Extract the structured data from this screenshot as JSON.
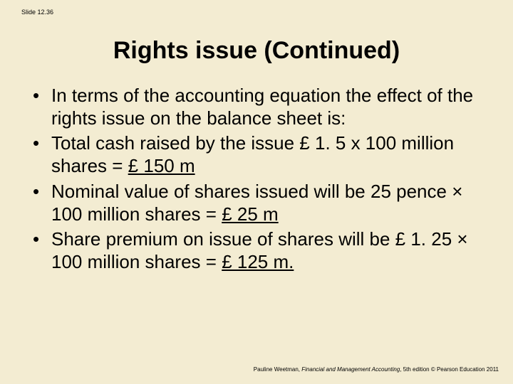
{
  "background_color": "#f3ecd2",
  "text_color": "#000000",
  "slide_number": "Slide 12.36",
  "title": "Rights issue (Continued)",
  "title_fontsize": 34,
  "body_fontsize": 26,
  "bullets": [
    {
      "pre": "In terms of the accounting equation the effect of the rights issue on the balance sheet is:",
      "u": "",
      "post": ""
    },
    {
      "pre": "Total cash raised by the issue £ 1. 5 x 100 million shares = ",
      "u": "£ 150 m",
      "post": ""
    },
    {
      "pre": "Nominal value of shares issued will be 25 pence × 100 million shares = ",
      "u": "£ 25 m",
      "post": ""
    },
    {
      "pre": "Share premium on issue of shares will be £ 1. 25 × 100 million shares = ",
      "u": "£ 125 m.",
      "post": ""
    }
  ],
  "footer": {
    "author": "Pauline Weetman, ",
    "book": "Financial and Management Accounting",
    "rest": ", 5th edition © Pearson Education 2011"
  }
}
